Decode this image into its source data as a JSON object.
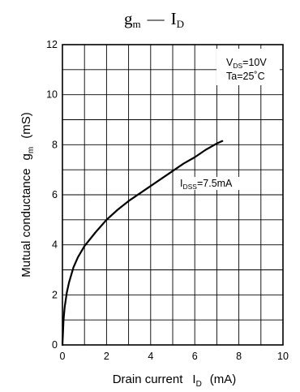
{
  "chart_data": {
    "type": "line",
    "title": {
      "main": "g",
      "main_sub": "m",
      "dash": "—",
      "var": "I",
      "var_sub": "D"
    },
    "xlabel": {
      "text": "Drain current",
      "sym": "I",
      "sub": "D",
      "unit": "(mA)"
    },
    "ylabel": {
      "text": "Mutual conductance",
      "sym": "g",
      "sub": "m",
      "unit": "(mS)"
    },
    "xlim": [
      0,
      10
    ],
    "ylim": [
      0,
      12
    ],
    "x_ticks": [
      "0",
      "2",
      "4",
      "6",
      "8",
      "10"
    ],
    "y_ticks": [
      "0",
      "2",
      "4",
      "6",
      "8",
      "10",
      "12"
    ],
    "grid": true,
    "conditions": [
      {
        "sym": "V",
        "sub": "DS",
        "val": "=10V"
      },
      {
        "sym": "Ta",
        "sub": "",
        "val": "=25˚C"
      }
    ],
    "annotation": {
      "sym": "I",
      "sub": "DSS",
      "val": "=7.5mA"
    },
    "series": [
      {
        "x": [
          0,
          0.05,
          0.1,
          0.2,
          0.3,
          0.5,
          0.7,
          1.0,
          1.5,
          2.0,
          2.5,
          3.0,
          3.5,
          4.0,
          4.5,
          5.0,
          5.5,
          6.0,
          6.5,
          7.0,
          7.25
        ],
        "y": [
          0,
          1.0,
          1.5,
          2.1,
          2.5,
          3.1,
          3.5,
          3.95,
          4.5,
          5.0,
          5.4,
          5.75,
          6.05,
          6.35,
          6.65,
          6.95,
          7.25,
          7.5,
          7.8,
          8.05,
          8.15
        ]
      }
    ]
  }
}
